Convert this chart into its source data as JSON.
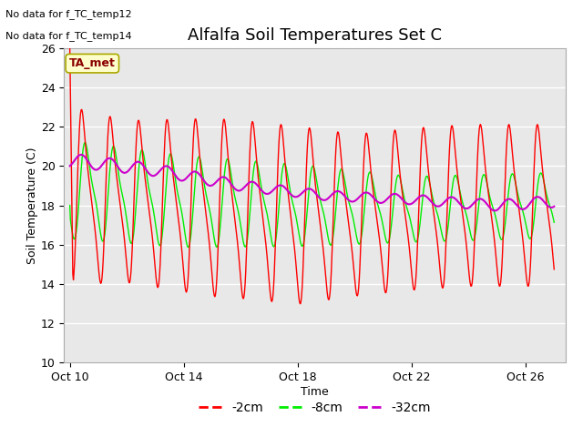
{
  "title": "Alfalfa Soil Temperatures Set C",
  "xlabel": "Time",
  "ylabel": "Soil Temperature (C)",
  "no_data_text": [
    "No data for f_TC_temp12",
    "No data for f_TC_temp14"
  ],
  "legend_label_box": "TA_met",
  "legend_entries": [
    "-2cm",
    "-8cm",
    "-32cm"
  ],
  "line_colors": [
    "#ff0000",
    "#00ee00",
    "#cc00cc"
  ],
  "ylim": [
    10,
    26
  ],
  "yticks": [
    10,
    12,
    14,
    16,
    18,
    20,
    22,
    24,
    26
  ],
  "fig_bg_color": "#ffffff",
  "plot_bg_color": "#e8e8e8",
  "grid_color": "#ffffff",
  "title_fontsize": 13,
  "axis_fontsize": 9,
  "tick_fontsize": 9
}
